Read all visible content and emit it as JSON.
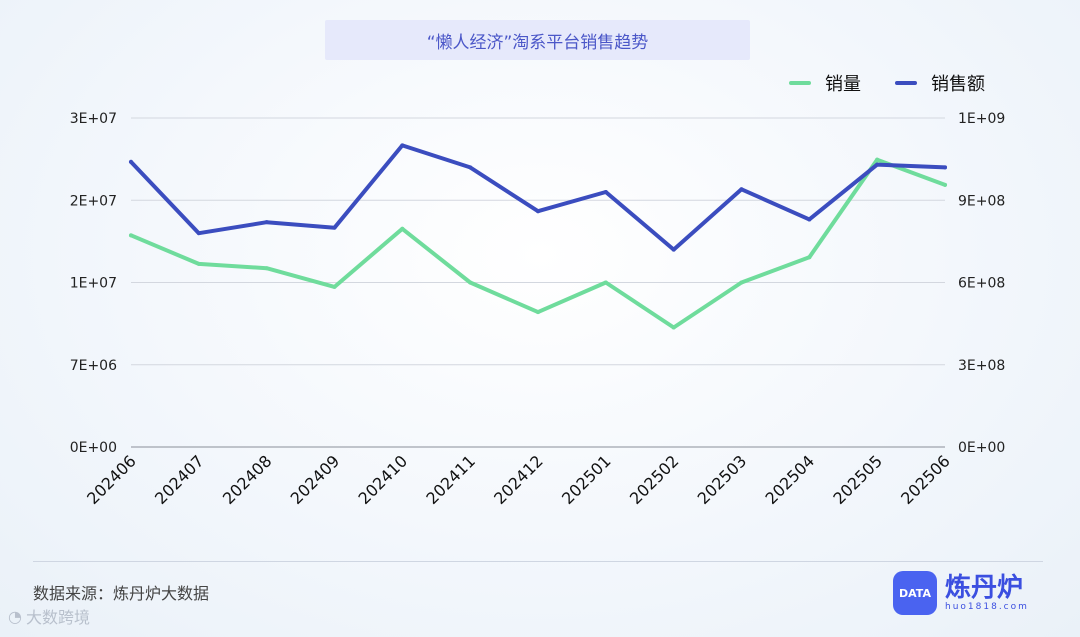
{
  "chart_data": {
    "type": "line",
    "title": "“懒人经济”淘系平台销售趋势",
    "categories": [
      "202406",
      "202407",
      "202408",
      "202409",
      "202410",
      "202411",
      "202412",
      "202501",
      "202502",
      "202503",
      "202504",
      "202505",
      "202506"
    ],
    "series": [
      {
        "name": "销量",
        "axis": "left",
        "color": "#6fdc9c",
        "values": [
          19300000,
          16700000,
          16300000,
          14600000,
          19900000,
          15000000,
          12300000,
          15000000,
          10900000,
          15000000,
          17300000,
          26200000,
          23900000
        ]
      },
      {
        "name": "销售额",
        "axis": "right",
        "color": "#3b4dbf",
        "values": [
          1040000000,
          780000000,
          820000000,
          800000000,
          1100000000,
          1020000000,
          860000000,
          930000000,
          720000000,
          940000000,
          830000000,
          1030000000,
          1020000000
        ]
      }
    ],
    "yleft_ticks": [
      "0E+00",
      "7E+06",
      "1E+07",
      "2E+07",
      "3E+07"
    ],
    "yleft_ylim": [
      0,
      30000000
    ],
    "yright_ticks": [
      "0E+00",
      "3E+08",
      "6E+08",
      "9E+08",
      "1E+09"
    ],
    "yright_ylim": [
      0,
      1200000000
    ],
    "grid": true,
    "legend_position": "top-right"
  },
  "footer": {
    "source": "数据来源：炼丹炉大数据",
    "watermark": "大数跨境",
    "brand_name": "炼丹炉",
    "brand_url": "huo1818.com",
    "brand_logo_text": "DATA"
  },
  "colors": {
    "accent": "#4a63f0",
    "title_bg": "#e6e9fb"
  }
}
